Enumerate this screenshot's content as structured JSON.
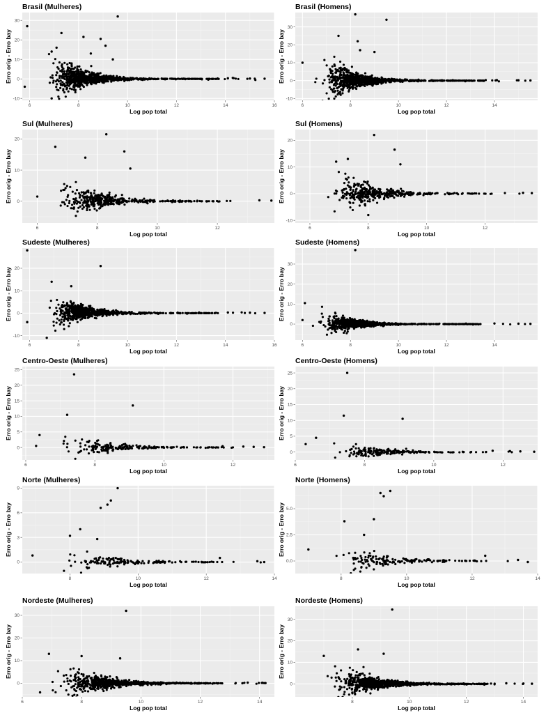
{
  "chart_data": [
    {
      "type": "scatter",
      "title": "Brasil (Mulheres)",
      "xlabel": "Log pop total",
      "ylabel": "Erro orig - Erro bay",
      "xlim": [
        5.7,
        16
      ],
      "ylim": [
        -11,
        34
      ],
      "xticks": [
        6,
        8,
        10,
        12,
        14,
        16
      ],
      "yticks": [
        -10,
        0,
        10,
        20,
        30
      ],
      "grid": true,
      "point_color": "#000000",
      "panel_background": "#ebebeb",
      "n_points": 900,
      "seed": 11,
      "cluster_center": 7.9,
      "cluster_spread": 0.7,
      "spread_scale": 4,
      "outliers": [
        [
          5.9,
          27
        ],
        [
          7.3,
          23.5
        ],
        [
          8.2,
          21.5
        ],
        [
          8.9,
          20.5
        ],
        [
          9.6,
          32
        ],
        [
          6.9,
          14
        ],
        [
          7.1,
          16
        ],
        [
          9.1,
          17
        ],
        [
          8.5,
          13
        ],
        [
          9.4,
          10
        ],
        [
          5.8,
          -4
        ],
        [
          6.9,
          -10
        ],
        [
          14.3,
          0.5
        ],
        [
          14.1,
          0.3
        ],
        [
          15.0,
          0.2
        ],
        [
          15.6,
          0.1
        ]
      ]
    },
    {
      "type": "scatter",
      "title": "Brasil (Homens)",
      "xlabel": "Log pop total",
      "ylabel": "Erro orig - Erro bay",
      "xlim": [
        5.7,
        15.8
      ],
      "ylim": [
        -11,
        38
      ],
      "xticks": [
        6,
        8,
        10,
        12,
        14
      ],
      "yticks": [
        -10,
        0,
        10,
        20,
        30
      ],
      "grid": true,
      "point_color": "#000000",
      "panel_background": "#ebebeb",
      "n_points": 900,
      "seed": 12,
      "cluster_center": 7.9,
      "cluster_spread": 0.7,
      "spread_scale": 4.5,
      "outliers": [
        [
          8.2,
          37
        ],
        [
          9.5,
          34
        ],
        [
          7.5,
          25
        ],
        [
          8.3,
          22
        ],
        [
          8.4,
          17
        ],
        [
          9.0,
          16
        ],
        [
          6.0,
          10
        ],
        [
          7.5,
          -7
        ],
        [
          14.1,
          0.3
        ],
        [
          15.0,
          0.2
        ],
        [
          15.5,
          0.1
        ]
      ]
    },
    {
      "type": "scatter",
      "title": "Sul (Mulheres)",
      "xlabel": "Log pop total",
      "ylabel": "Erro orig - Erro bay",
      "xlim": [
        5.5,
        13.9
      ],
      "ylim": [
        -7,
        23
      ],
      "xticks": [
        6,
        8,
        10,
        12
      ],
      "yticks": [
        0,
        10,
        20
      ],
      "grid": true,
      "point_color": "#000000",
      "panel_background": "#ebebeb",
      "n_points": 380,
      "seed": 21,
      "cluster_center": 7.6,
      "cluster_spread": 0.65,
      "spread_scale": 3,
      "outliers": [
        [
          8.3,
          21.5
        ],
        [
          6.6,
          17.5
        ],
        [
          8.9,
          16
        ],
        [
          9.1,
          10.5
        ],
        [
          7.6,
          14
        ],
        [
          6.0,
          1.5
        ],
        [
          13.4,
          0.3
        ],
        [
          13.8,
          0.2
        ]
      ]
    },
    {
      "type": "scatter",
      "title": "Sul (Homens)",
      "xlabel": "Log pop total",
      "ylabel": "Erro orig - Erro bay",
      "xlim": [
        5.5,
        13.8
      ],
      "ylim": [
        -11,
        24
      ],
      "xticks": [
        6,
        8,
        10,
        12
      ],
      "yticks": [
        -10,
        0,
        10,
        20
      ],
      "grid": true,
      "point_color": "#000000",
      "panel_background": "#ebebeb",
      "n_points": 380,
      "seed": 22,
      "cluster_center": 7.7,
      "cluster_spread": 0.65,
      "spread_scale": 3.5,
      "outliers": [
        [
          8.2,
          22
        ],
        [
          8.9,
          16.5
        ],
        [
          9.1,
          11
        ],
        [
          6.9,
          12
        ],
        [
          7.3,
          13
        ],
        [
          8.0,
          -8
        ],
        [
          13.3,
          0.3
        ],
        [
          13.6,
          0.2
        ]
      ]
    },
    {
      "type": "scatter",
      "title": "Sudeste (Mulheres)",
      "xlabel": "Log pop total",
      "ylabel": "Erro orig - Erro bay",
      "xlim": [
        5.7,
        16
      ],
      "ylim": [
        -12,
        29
      ],
      "xticks": [
        6,
        8,
        10,
        12,
        14,
        16
      ],
      "yticks": [
        -10,
        0,
        10,
        20
      ],
      "grid": true,
      "point_color": "#000000",
      "panel_background": "#ebebeb",
      "n_points": 750,
      "seed": 31,
      "cluster_center": 7.8,
      "cluster_spread": 0.7,
      "spread_scale": 3.5,
      "outliers": [
        [
          5.9,
          28
        ],
        [
          8.9,
          21
        ],
        [
          6.9,
          14
        ],
        [
          7.7,
          12
        ],
        [
          5.9,
          -4
        ],
        [
          6.7,
          -11
        ],
        [
          14.1,
          0.3
        ],
        [
          15.0,
          0.2
        ],
        [
          15.6,
          0.1
        ]
      ]
    },
    {
      "type": "scatter",
      "title": "Sudeste (Homens)",
      "xlabel": "Log pop total",
      "ylabel": "Erro orig - Erro bay",
      "xlim": [
        5.7,
        15.8
      ],
      "ylim": [
        -8,
        38
      ],
      "xticks": [
        6,
        8,
        10,
        12,
        14
      ],
      "yticks": [
        0,
        10,
        20,
        30
      ],
      "grid": true,
      "point_color": "#000000",
      "panel_background": "#ebebeb",
      "n_points": 750,
      "seed": 32,
      "cluster_center": 7.8,
      "cluster_spread": 0.7,
      "spread_scale": 2.5,
      "outliers": [
        [
          8.2,
          37
        ],
        [
          6.1,
          10.5
        ],
        [
          6.0,
          2
        ],
        [
          14.0,
          0.3
        ],
        [
          15.0,
          0.2
        ],
        [
          15.5,
          0.1
        ]
      ]
    },
    {
      "type": "scatter",
      "title": "Centro-Oeste (Mulheres)",
      "xlabel": "Log pop total",
      "ylabel": "Erro orig - Erro bay",
      "xlim": [
        5.9,
        13.2
      ],
      "ylim": [
        -4,
        26
      ],
      "xticks": [
        6,
        8,
        10,
        12
      ],
      "yticks": [
        0,
        5,
        10,
        15,
        20,
        25
      ],
      "grid": true,
      "point_color": "#000000",
      "panel_background": "#ebebeb",
      "n_points": 190,
      "seed": 41,
      "cluster_center": 8.0,
      "cluster_spread": 0.75,
      "spread_scale": 1.6,
      "outliers": [
        [
          7.4,
          23.5
        ],
        [
          9.1,
          13.5
        ],
        [
          7.2,
          10.5
        ],
        [
          6.4,
          4
        ],
        [
          6.3,
          0.5
        ],
        [
          11.7,
          0.4
        ],
        [
          12.3,
          0.3
        ],
        [
          12.6,
          0.2
        ],
        [
          12.9,
          0.1
        ]
      ]
    },
    {
      "type": "scatter",
      "title": "Centro-Oeste (Homens)",
      "xlabel": "Log pop total",
      "ylabel": "Erro orig - Erro bay",
      "xlim": [
        6.0,
        13.0
      ],
      "ylim": [
        -2.5,
        27
      ],
      "xticks": [
        6,
        8,
        10,
        12
      ],
      "yticks": [
        0,
        5,
        10,
        15,
        20,
        25
      ],
      "grid": true,
      "point_color": "#000000",
      "panel_background": "#ebebeb",
      "n_points": 190,
      "seed": 42,
      "cluster_center": 8.0,
      "cluster_spread": 0.75,
      "spread_scale": 1.4,
      "outliers": [
        [
          7.5,
          25
        ],
        [
          7.4,
          11.5
        ],
        [
          9.1,
          10.5
        ],
        [
          6.3,
          2.5
        ],
        [
          6.6,
          4.5
        ],
        [
          11.7,
          0.4
        ],
        [
          12.2,
          0.3
        ],
        [
          12.5,
          0.2
        ],
        [
          12.9,
          0.1
        ]
      ]
    },
    {
      "type": "scatter",
      "title": "Norte (Mulheres)",
      "xlabel": "Log pop total",
      "ylabel": "Erro orig - Erro bay",
      "xlim": [
        6.6,
        14.0
      ],
      "ylim": [
        -1.4,
        9.3
      ],
      "xticks": [
        8,
        10,
        12,
        14
      ],
      "yticks": [
        0,
        3,
        6,
        9
      ],
      "grid": true,
      "point_color": "#000000",
      "panel_background": "#ebebeb",
      "n_points": 150,
      "seed": 51,
      "cluster_center": 8.9,
      "cluster_spread": 0.8,
      "spread_scale": 0.6,
      "outliers": [
        [
          9.4,
          9
        ],
        [
          9.2,
          7.5
        ],
        [
          9.1,
          7.0
        ],
        [
          8.9,
          6.6
        ],
        [
          8.0,
          3.2
        ],
        [
          8.3,
          4.0
        ],
        [
          8.8,
          2.8
        ],
        [
          6.9,
          0.8
        ],
        [
          12.4,
          0.5
        ],
        [
          13.5,
          0.1
        ],
        [
          13.7,
          0.0
        ]
      ]
    },
    {
      "type": "scatter",
      "title": "Norte (Homens)",
      "xlabel": "Log pop total",
      "ylabel": "Erro orig - Erro bay",
      "xlim": [
        6.6,
        14.0
      ],
      "ylim": [
        -1.2,
        7.2
      ],
      "xticks": [
        8,
        10,
        12,
        14
      ],
      "yticks": [
        0.0,
        2.5,
        5.0
      ],
      "grid": true,
      "point_color": "#000000",
      "panel_background": "#ebebeb",
      "n_points": 150,
      "seed": 52,
      "cluster_center": 8.9,
      "cluster_spread": 0.8,
      "spread_scale": 0.6,
      "outliers": [
        [
          9.5,
          6.7
        ],
        [
          9.2,
          6.5
        ],
        [
          9.3,
          6.2
        ],
        [
          9.0,
          4.0
        ],
        [
          8.1,
          3.8
        ],
        [
          8.7,
          2.5
        ],
        [
          7.0,
          1.1
        ],
        [
          12.4,
          0.5
        ],
        [
          13.4,
          0.1
        ],
        [
          13.7,
          -0.1
        ]
      ]
    },
    {
      "type": "scatter",
      "title": "Nordeste (Mulheres)",
      "xlabel": "Log pop total",
      "ylabel": "Erro orig - Erro bay",
      "xlim": [
        6.0,
        14.5
      ],
      "ylim": [
        -6,
        34
      ],
      "xticks": [
        6,
        8,
        10,
        12,
        14
      ],
      "yticks": [
        0,
        10,
        20,
        30
      ],
      "grid": true,
      "point_color": "#000000",
      "panel_background": "#ebebeb",
      "n_points": 750,
      "seed": 61,
      "cluster_center": 8.4,
      "cluster_spread": 0.75,
      "spread_scale": 2.8,
      "outliers": [
        [
          9.5,
          32
        ],
        [
          6.9,
          13
        ],
        [
          8.0,
          12
        ],
        [
          9.3,
          11
        ],
        [
          6.6,
          -4
        ],
        [
          13.6,
          0.3
        ],
        [
          14.1,
          0.2
        ],
        [
          14.2,
          0.1
        ]
      ]
    },
    {
      "type": "scatter",
      "title": "Nordeste (Homens)",
      "xlabel": "Log pop total",
      "ylabel": "Erro orig - Erro bay",
      "xlim": [
        6.0,
        14.5
      ],
      "ylim": [
        -6,
        36
      ],
      "xticks": [
        8,
        10,
        12,
        14
      ],
      "yticks": [
        0,
        10,
        20,
        30
      ],
      "grid": true,
      "point_color": "#000000",
      "panel_background": "#ebebeb",
      "n_points": 750,
      "seed": 62,
      "cluster_center": 8.4,
      "cluster_spread": 0.75,
      "spread_scale": 3,
      "outliers": [
        [
          9.4,
          34.5
        ],
        [
          8.2,
          16
        ],
        [
          9.1,
          14
        ],
        [
          7.0,
          13
        ],
        [
          8.0,
          -4
        ],
        [
          13.4,
          0.3
        ],
        [
          14.0,
          0.2
        ],
        [
          14.3,
          0.1
        ]
      ]
    }
  ]
}
